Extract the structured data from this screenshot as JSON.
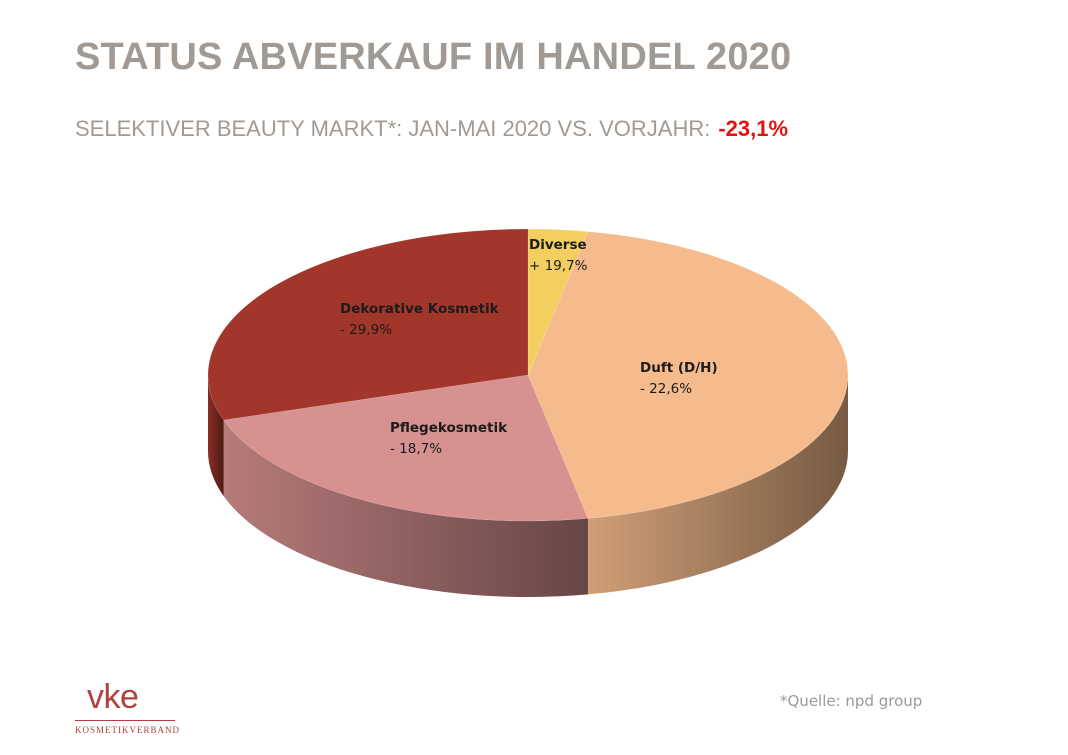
{
  "title": "STATUS ABVERKAUF IM HANDEL 2020",
  "subtitle": {
    "text": "SELEKTIVER BEAUTY MARKT*: JAN-MAI 2020 VS. VORJAHR:",
    "delta": "-23,1%",
    "delta_color": "#e01212"
  },
  "chart_data": {
    "type": "pie",
    "style": "3d",
    "slices": [
      {
        "label": "Diverse",
        "value_label": "+ 19,7%",
        "share": 3,
        "color": "#f3cf5f"
      },
      {
        "label": "Duft (D/H)",
        "value_label": "- 22,6%",
        "share": 44,
        "color": "#f5bb8c"
      },
      {
        "label": "Pflegekosmetik",
        "value_label": "- 18,7%",
        "share": 23,
        "color": "#d69190"
      },
      {
        "label": "Dekorative Kosmetik",
        "value_label": "- 29,9%",
        "share": 30,
        "color": "#a3362a"
      }
    ]
  },
  "source": "*Quelle: npd group",
  "logo": {
    "mark": "vke",
    "subtitle": "Kosmetikverband",
    "color": "#b0413e"
  }
}
